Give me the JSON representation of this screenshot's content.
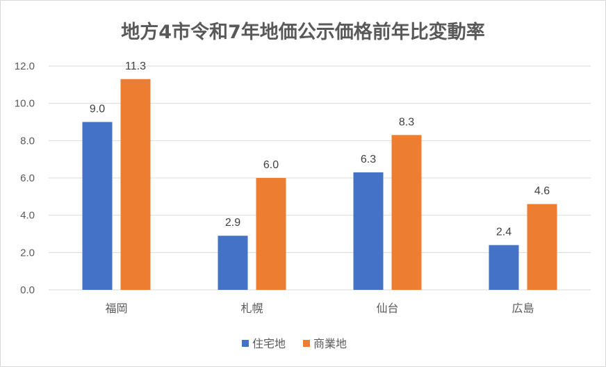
{
  "chart_data": {
    "type": "bar",
    "title": "地方4市令和7年地価公示価格前年比変動率",
    "categories": [
      "福岡",
      "札幌",
      "仙台",
      "広島"
    ],
    "series": [
      {
        "name": "住宅地",
        "color": "#4472c4",
        "values": [
          9.0,
          2.9,
          6.3,
          2.4
        ]
      },
      {
        "name": "商業地",
        "color": "#ed7d31",
        "values": [
          11.3,
          6.0,
          8.3,
          4.6
        ]
      }
    ],
    "ylim": [
      0,
      12
    ],
    "yticks": [
      "0.0",
      "2.0",
      "4.0",
      "6.0",
      "8.0",
      "10.0",
      "12.0"
    ],
    "grid": true,
    "legend": "bottom",
    "xlabel": "",
    "ylabel": ""
  }
}
